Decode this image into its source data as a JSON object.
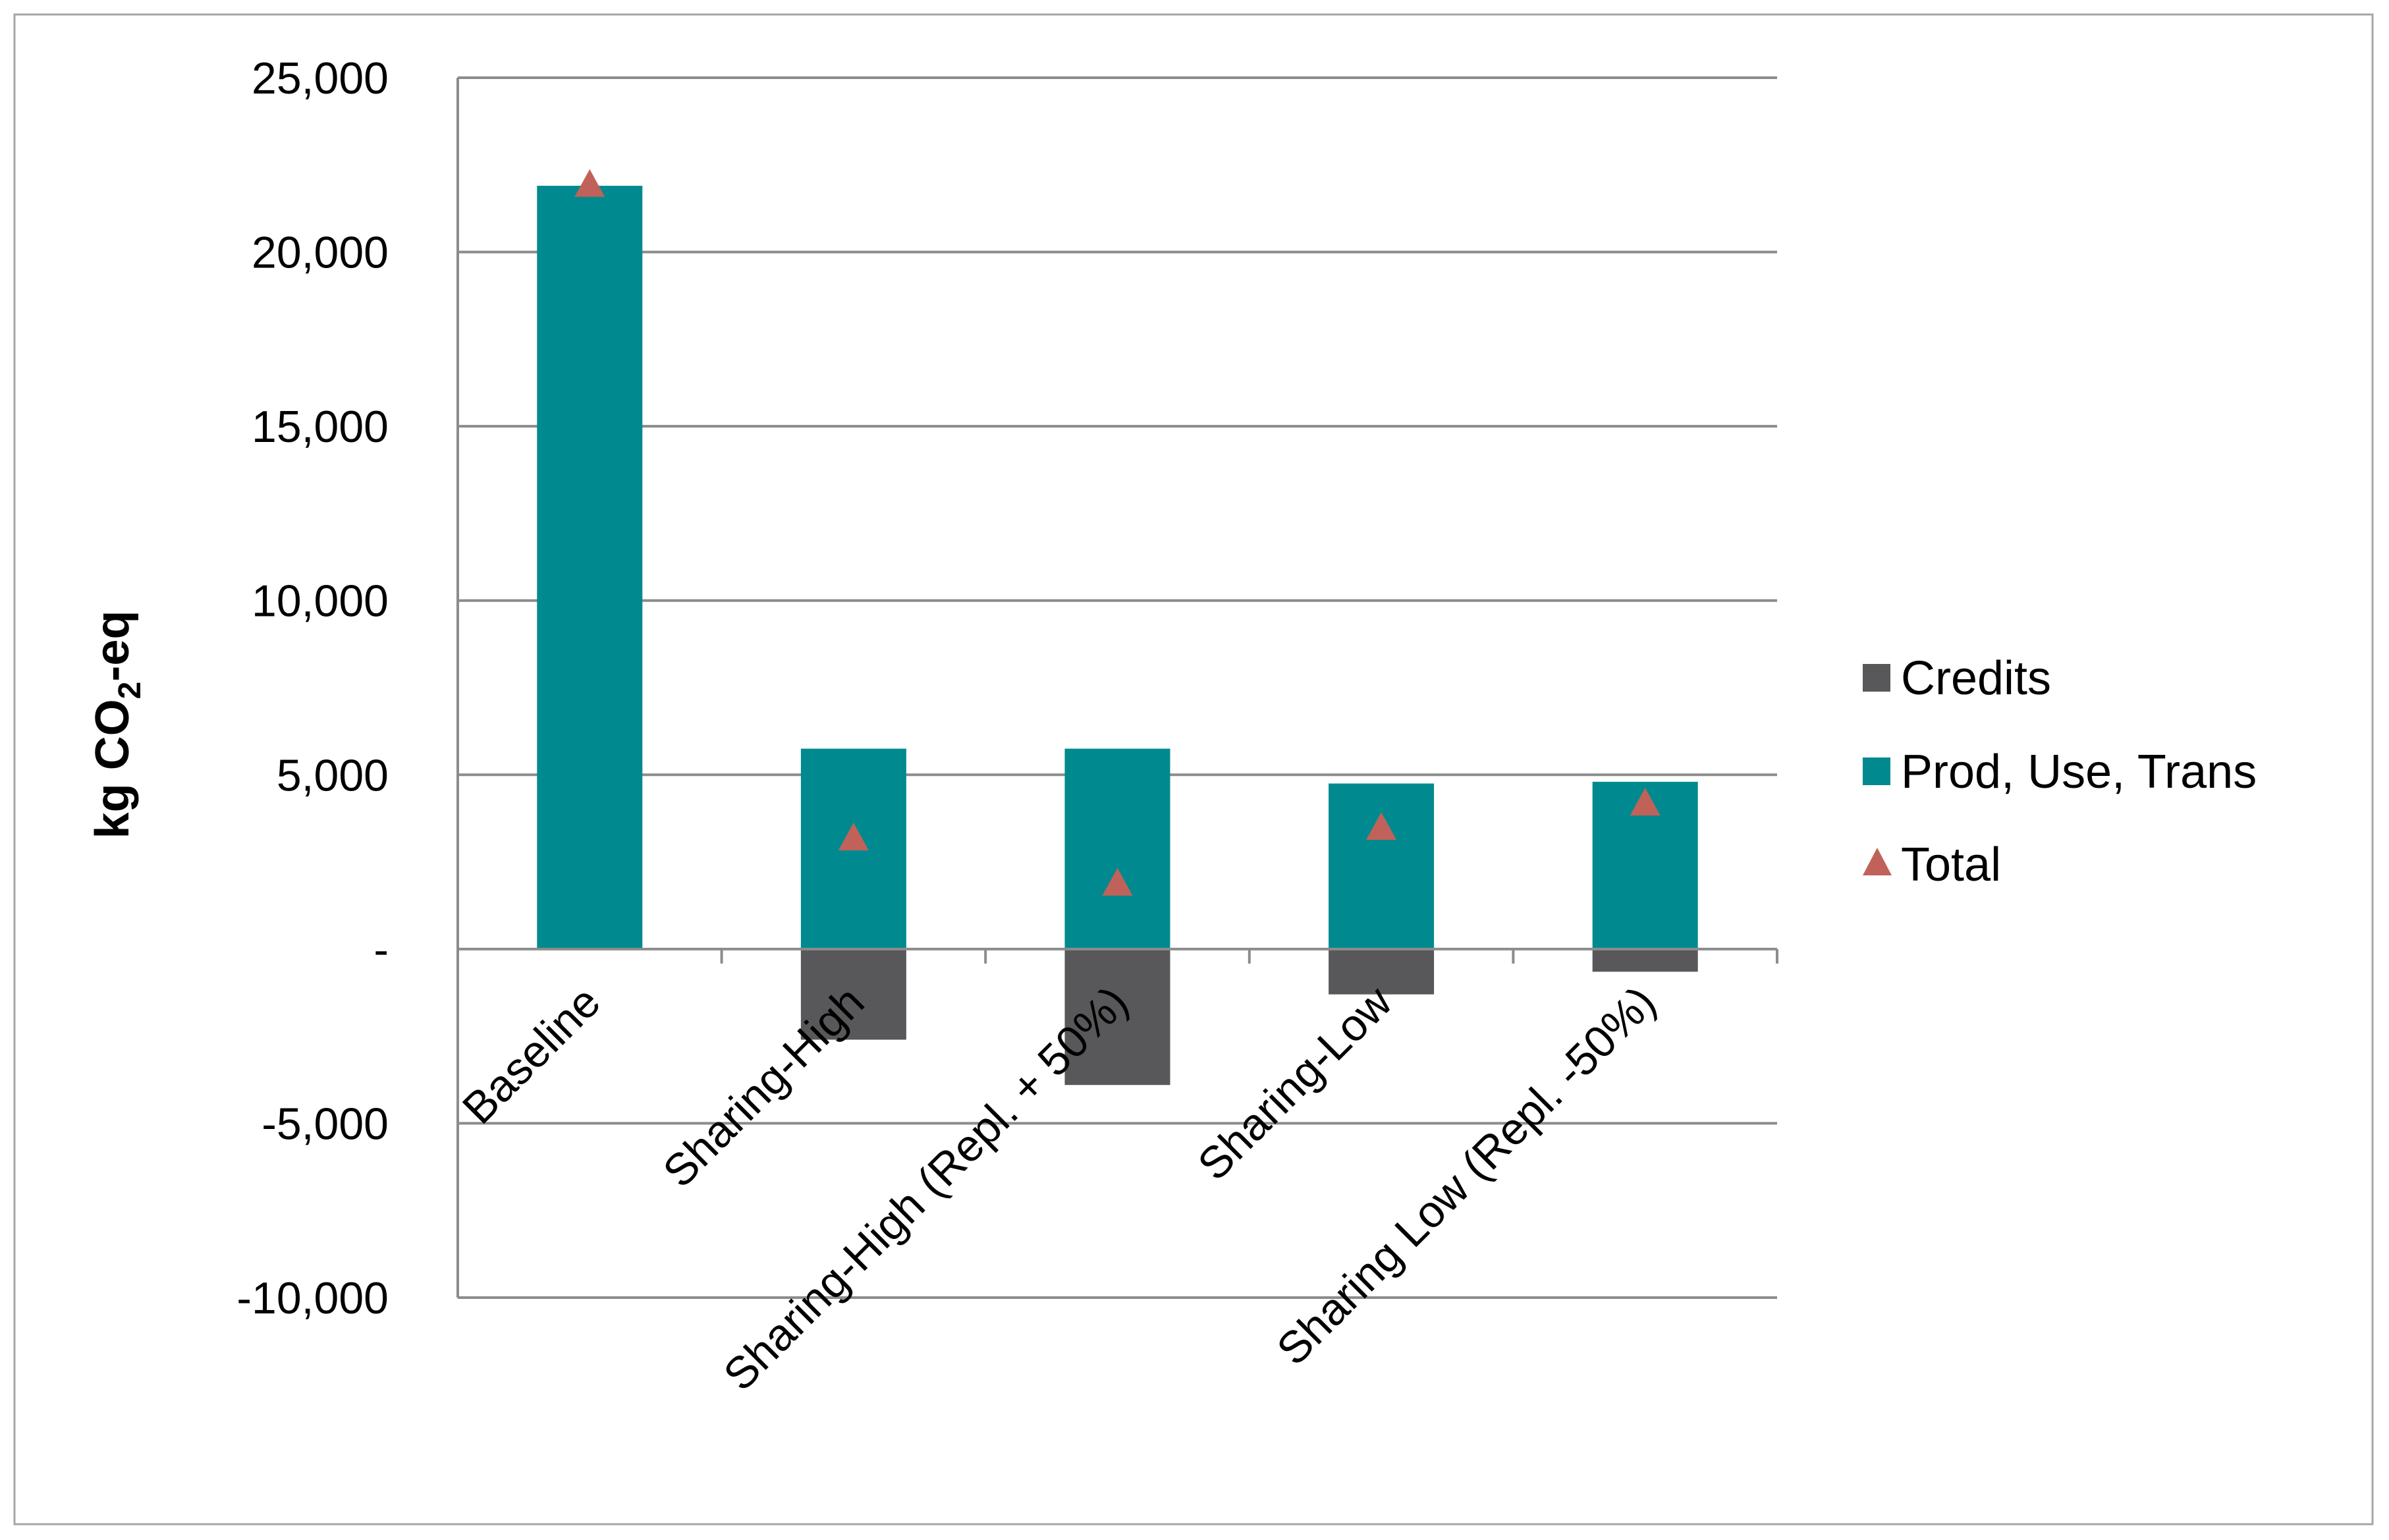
{
  "chart_data": {
    "type": "bar",
    "stacked": true,
    "categories": [
      "Baseline",
      "Sharing-High",
      "Sharing-High (Repl. + 50%)",
      "Sharing-Low",
      "Sharing Low (Repl. -50%)"
    ],
    "series": [
      {
        "name": "Credits",
        "values": [
          0,
          -2600,
          -3900,
          -1300,
          -650
        ],
        "color": "#58585a",
        "kind": "bar"
      },
      {
        "name": "Prod, Use, Trans",
        "values": [
          21900,
          5750,
          5750,
          4750,
          4800
        ],
        "color": "#008a8f",
        "kind": "bar"
      },
      {
        "name": "Total",
        "values": [
          21900,
          3150,
          1850,
          3450,
          4150
        ],
        "color": "#c0625a",
        "kind": "marker-triangle"
      }
    ],
    "ylabel_main": "kg CO",
    "ylabel_sub": "2",
    "ylabel_tail": "-eq",
    "ylim": [
      -10000,
      25000
    ],
    "yticks": [
      {
        "value": 25000,
        "label": "25,000"
      },
      {
        "value": 20000,
        "label": "20,000"
      },
      {
        "value": 15000,
        "label": "15,000"
      },
      {
        "value": 10000,
        "label": "10,000"
      },
      {
        "value": 5000,
        "label": "5,000"
      },
      {
        "value": 0,
        "label": "-"
      },
      {
        "value": -5000,
        "label": "-5,000"
      },
      {
        "value": -10000,
        "label": "-10,000"
      }
    ],
    "grid": true,
    "legend_position": "right"
  }
}
